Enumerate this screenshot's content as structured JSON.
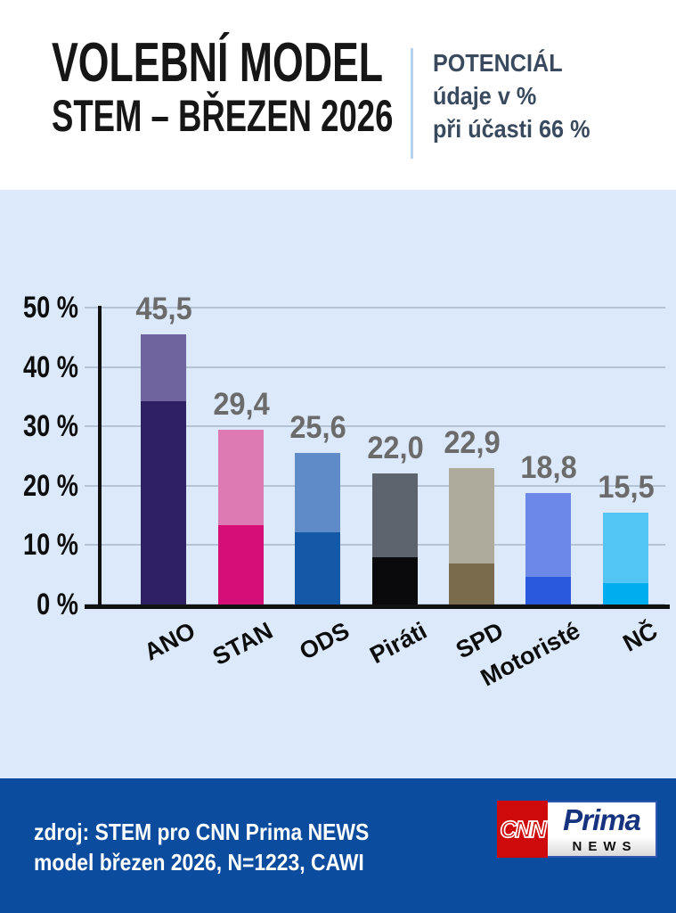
{
  "header": {
    "title_line1": "VOLEBNÍ MODEL",
    "title_line2": "STEM – BŘEZEN 2026",
    "note_line1": "POTENCIÁL",
    "note_line2": "údaje v %",
    "note_line3": "při účasti 66 %"
  },
  "chart_data": {
    "type": "bar",
    "stacked": true,
    "title": "VOLEBNÍ MODEL STEM – BŘEZEN 2026",
    "subtitle": "POTENCIÁL, údaje v %, při účasti 66 %",
    "categories": [
      "ANO",
      "STAN",
      "ODS",
      "Piráti",
      "SPD",
      "Motoristé",
      "NČ"
    ],
    "totals": [
      45.5,
      29.4,
      25.6,
      22.0,
      22.9,
      18.8,
      15.5
    ],
    "value_labels": [
      "45,5",
      "29,4",
      "25,6",
      "22,0",
      "22,9",
      "18,8",
      "15,5"
    ],
    "series": [
      {
        "name": "dolní tmavý segment (odhad z grafu)",
        "values": [
          34.3,
          13.4,
          12.2,
          8.0,
          6.9,
          4.7,
          3.6
        ]
      },
      {
        "name": "horní světlý segment – potenciál (odhad z grafu)",
        "values": [
          11.2,
          16.0,
          13.4,
          14.0,
          16.0,
          14.1,
          11.9
        ]
      }
    ],
    "bar_colors": {
      "dark": [
        "#2e2063",
        "#d60e78",
        "#1458a8",
        "#0a0a0c",
        "#7b6b4d",
        "#2b59dd",
        "#00aeef"
      ],
      "light": [
        "#70649f",
        "#dd7ab4",
        "#5f8cc8",
        "#5e646d",
        "#afab9c",
        "#6c88e9",
        "#53c5f4"
      ]
    },
    "y_ticks": [
      "50 %",
      "40 %",
      "30 %",
      "20 %",
      "10 %",
      "0 %"
    ],
    "ylim": [
      0,
      50
    ],
    "grid": true,
    "legend_position": "none"
  },
  "footer": {
    "source_line1": "zdroj: STEM pro CNN Prima NEWS",
    "source_line2": "model březen 2026, N=1223, CAWI",
    "logo": {
      "cnn": "CNN",
      "prima": "Prima",
      "news": "NEWS"
    }
  },
  "colors": {
    "header_bg": "#ffffff",
    "chart_bg": "#dbe9fa",
    "footer_bg": "#0c4c9f",
    "grid": "#b5c3d6",
    "axis": "#111111",
    "value_label": "#6b6b6b",
    "tick_label": "#0d0d0d",
    "note_text": "#3a4a5e",
    "divider": "#b7d2ed",
    "logo_red": "#cf0a0a",
    "prima_blue": "#16337f"
  }
}
